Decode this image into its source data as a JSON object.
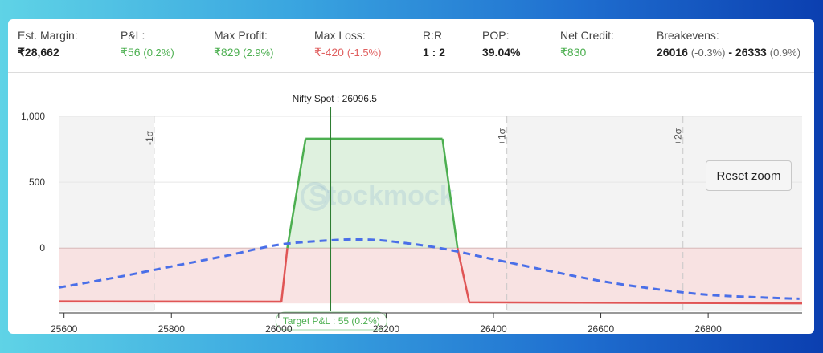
{
  "stats": {
    "margin": {
      "label": "Est. Margin:",
      "value": "₹28,662"
    },
    "pnl": {
      "label": "P&L:",
      "value": "₹56",
      "sub": "(0.2%)"
    },
    "max_profit": {
      "label": "Max Profit:",
      "value": "₹829",
      "sub": "(2.9%)"
    },
    "max_loss": {
      "label": "Max Loss:",
      "value": "₹-420",
      "sub": "(-1.5%)"
    },
    "rr": {
      "label": "R:R",
      "value": "1 : 2"
    },
    "pop": {
      "label": "POP:",
      "value": "39.04%"
    },
    "net_credit": {
      "label": "Net Credit:",
      "value": "₹830"
    },
    "breakevens": {
      "label": "Breakevens:",
      "lower": "26016",
      "lower_sub": "(-0.3%)",
      "sep": "-",
      "upper": "26333",
      "upper_sub": "(0.9%)"
    }
  },
  "reset_zoom": "Reset zoom",
  "watermark": "Stockmock",
  "chart_data": {
    "type": "area",
    "x_range": [
      25590,
      26975
    ],
    "y_range": [
      -480,
      1000
    ],
    "x_ticks": [
      25600,
      25800,
      26000,
      26200,
      26400,
      26600,
      26800
    ],
    "y_ticks": [
      {
        "value": 1000,
        "label": "1,000"
      },
      {
        "value": 500,
        "label": "500"
      },
      {
        "value": 0,
        "label": "0"
      }
    ],
    "payoff": {
      "x": [
        25590,
        26005,
        26016,
        26050,
        26305,
        26333,
        26355,
        26975
      ],
      "y": [
        -405,
        -407,
        0,
        830,
        830,
        0,
        -412,
        -420
      ]
    },
    "distribution": {
      "x": [
        25590,
        25700,
        25800,
        25900,
        26000,
        26100,
        26150,
        26200,
        26300,
        26400,
        26500,
        26600,
        26700,
        26800,
        26900,
        26970
      ],
      "y": [
        -300,
        -220,
        -140,
        -60,
        25,
        60,
        65,
        55,
        0,
        -85,
        -170,
        -250,
        -310,
        -355,
        -375,
        -385
      ]
    },
    "spot": {
      "value": 26096.5,
      "label": "Nifty Spot : 26096.5"
    },
    "target": {
      "label": "Target P&L : 55 (0.2%)"
    },
    "sigma_lines": [
      {
        "value": 25768,
        "label": "-1σ"
      },
      {
        "value": 26425,
        "label": "+1σ"
      },
      {
        "value": 26753,
        "label": "+2σ"
      }
    ],
    "colors": {
      "profit": "#4caf50",
      "loss": "#e05555",
      "distribution": "#4a6fe8",
      "spot": "#2e7d32",
      "grid": "#e6e6e6",
      "band": "#f3f3f3"
    }
  }
}
